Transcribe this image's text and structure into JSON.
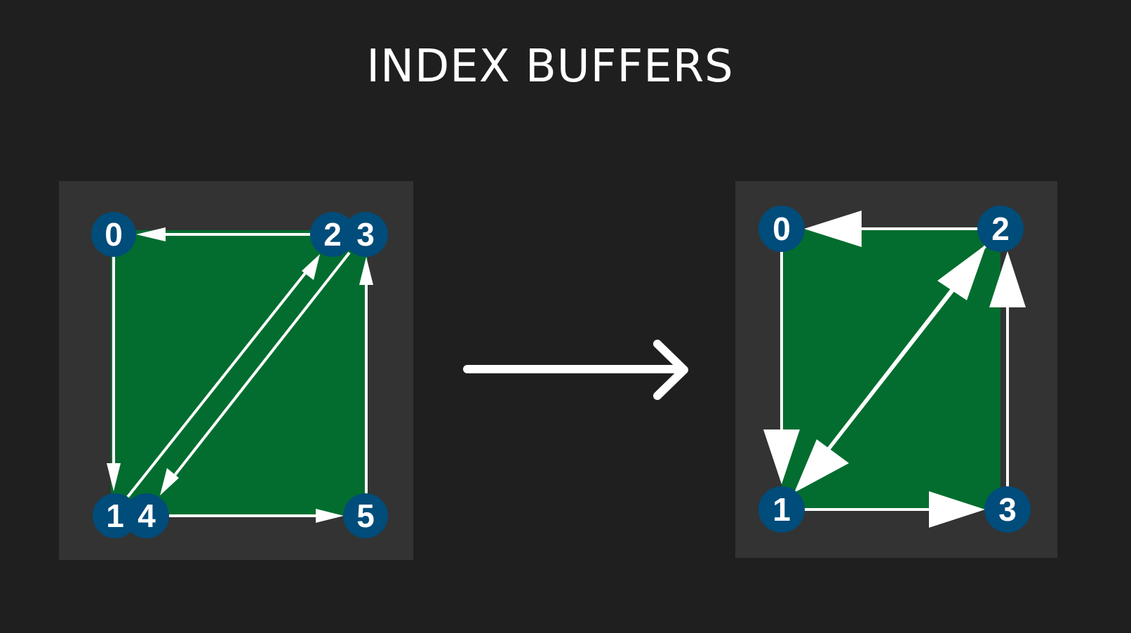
{
  "title": "INDEX BUFFERS",
  "colors": {
    "background": "#1f1f1f",
    "panel": "#333333",
    "quad_fill": "#026d2f",
    "vertex_fill": "#004c7a",
    "edge": "#ffffff",
    "label": "#ffffff"
  },
  "left_diagram": {
    "vertices": [
      {
        "id": "v0",
        "label": "0"
      },
      {
        "id": "v1",
        "label": "1"
      },
      {
        "id": "v2",
        "label": "2"
      },
      {
        "id": "v3",
        "label": "3"
      },
      {
        "id": "v4",
        "label": "4"
      },
      {
        "id": "v5",
        "label": "5"
      }
    ],
    "edges": [
      {
        "from": "0",
        "to": "1"
      },
      {
        "from": "1",
        "to": "2"
      },
      {
        "from": "2",
        "to": "0"
      },
      {
        "from": "3",
        "to": "4"
      },
      {
        "from": "4",
        "to": "5"
      },
      {
        "from": "5",
        "to": "3"
      }
    ]
  },
  "right_diagram": {
    "vertices": [
      {
        "id": "w0",
        "label": "0"
      },
      {
        "id": "w1",
        "label": "1"
      },
      {
        "id": "w2",
        "label": "2"
      },
      {
        "id": "w3",
        "label": "3"
      }
    ],
    "edges": [
      {
        "from": "0",
        "to": "1"
      },
      {
        "from": "1",
        "to": "2"
      },
      {
        "from": "2",
        "to": "0"
      },
      {
        "from": "2",
        "to": "1"
      },
      {
        "from": "1",
        "to": "3"
      },
      {
        "from": "3",
        "to": "2"
      }
    ]
  },
  "transform_arrow": {
    "icon": "right-arrow-icon"
  }
}
